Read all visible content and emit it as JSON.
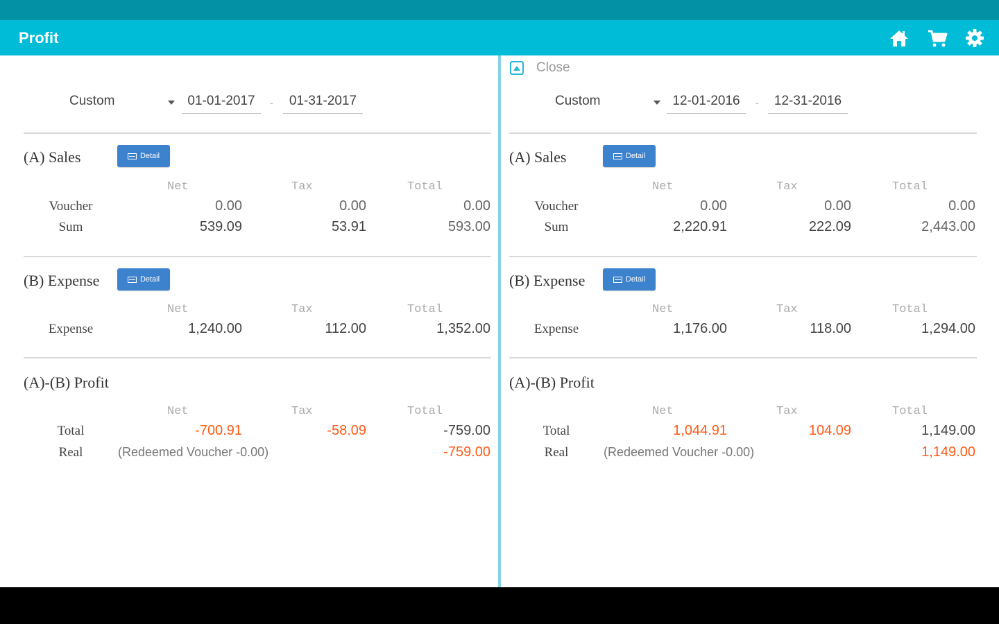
{
  "app": {
    "title": "Profit"
  },
  "icons": {
    "home": "home-icon",
    "cart": "cart-icon",
    "settings": "gear-icon"
  },
  "colors": {
    "appbar": "#00bcd6",
    "statusbar": "#0291a5",
    "accent_orange": "#ff5a14",
    "detail_button": "#3d82cc"
  },
  "headers": {
    "net": "Net",
    "tax": "Tax",
    "total": "Total"
  },
  "labels": {
    "sales": "(A) Sales",
    "expense": "(B) Expense",
    "profit": "(A)-(B) Profit",
    "detail": "Detail",
    "voucher": "Voucher",
    "sum": "Sum",
    "expense_row": "Expense",
    "total": "Total",
    "real": "Real"
  },
  "left": {
    "range": "Custom",
    "date_from": "01-01-2017",
    "date_to": "01-31-2017",
    "sales": {
      "voucher": {
        "net": "0.00",
        "tax": "0.00",
        "total": "0.00"
      },
      "sum": {
        "net": "539.09",
        "tax": "53.91",
        "total": "593.00"
      }
    },
    "expense": {
      "net": "1,240.00",
      "tax": "112.00",
      "total": "1,352.00"
    },
    "profit": {
      "total": {
        "net": "-700.91",
        "tax": "-58.09",
        "total": "-759.00"
      },
      "real_note": "(Redeemed Voucher -0.00)",
      "real_total": "-759.00"
    }
  },
  "right": {
    "close_label": "Close",
    "range": "Custom",
    "date_from": "12-01-2016",
    "date_to": "12-31-2016",
    "sales": {
      "voucher": {
        "net": "0.00",
        "tax": "0.00",
        "total": "0.00"
      },
      "sum": {
        "net": "2,220.91",
        "tax": "222.09",
        "total": "2,443.00"
      }
    },
    "expense": {
      "net": "1,176.00",
      "tax": "118.00",
      "total": "1,294.00"
    },
    "profit": {
      "total": {
        "net": "1,044.91",
        "tax": "104.09",
        "total": "1,149.00"
      },
      "real_note": "(Redeemed Voucher -0.00)",
      "real_total": "1,149.00"
    }
  }
}
